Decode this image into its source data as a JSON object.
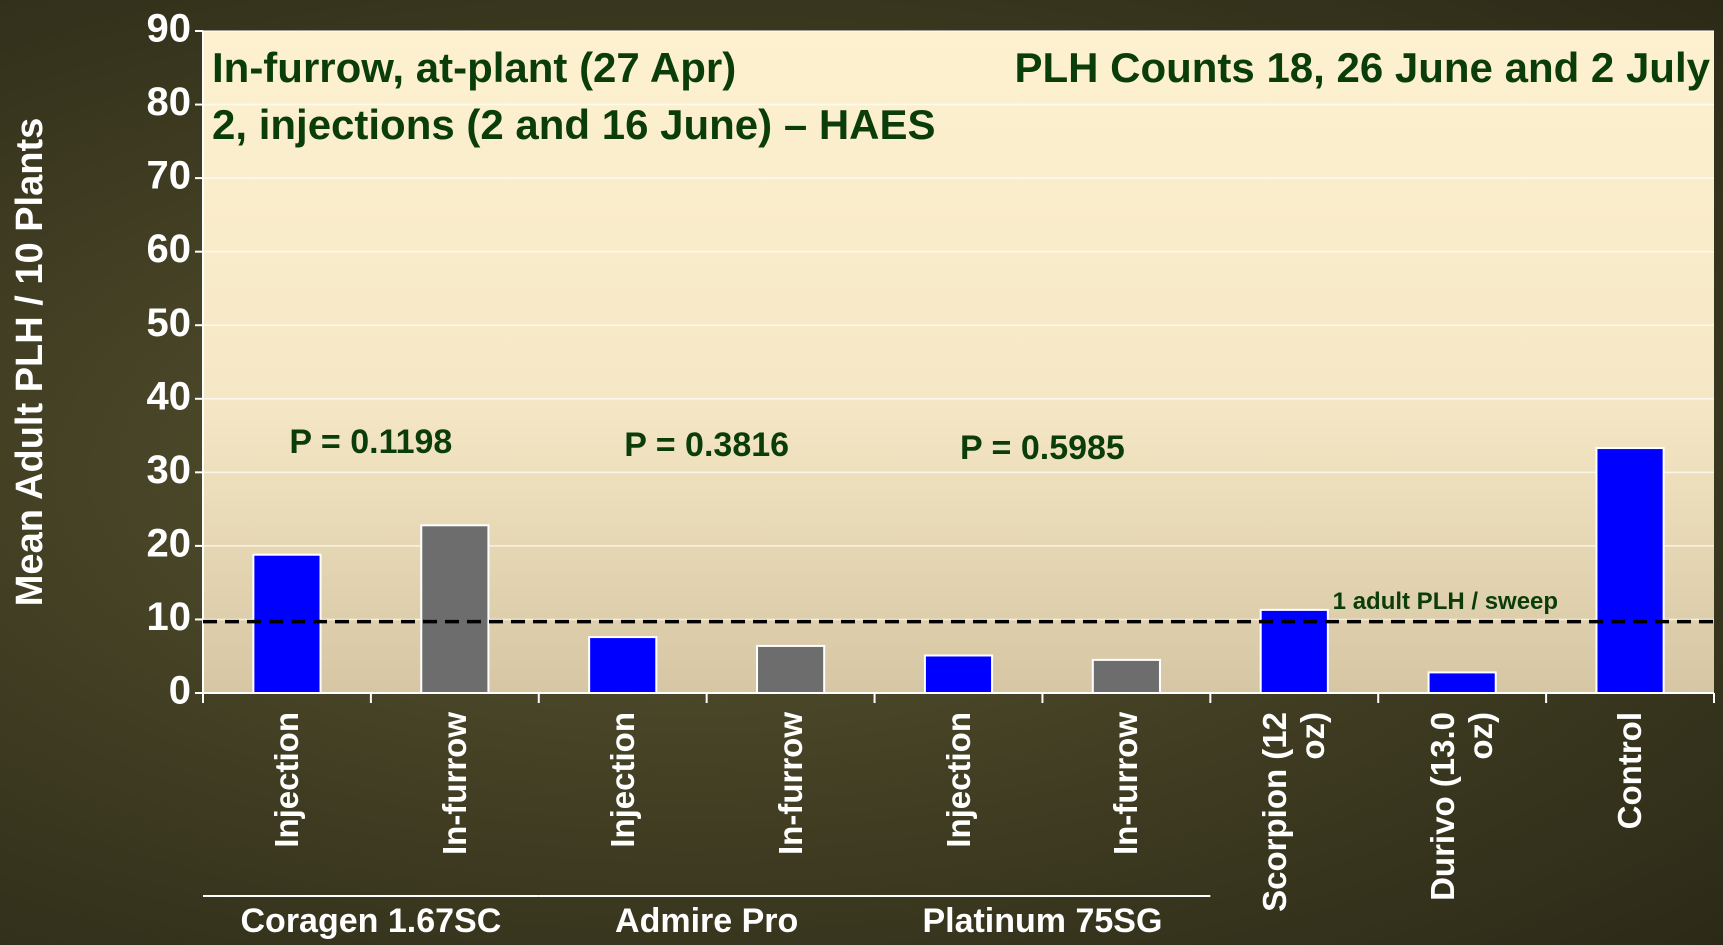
{
  "chart_data": {
    "type": "bar",
    "title_lines": [
      "In-furrow, at-plant (27 Apr)",
      "PLH Counts 18, 26 June and 2 July",
      "2, injections (2 and 16 June) – HAES"
    ],
    "y_label": "Mean Adult PLH / 10 Plants",
    "categories": [
      "Injection",
      "In-furrow",
      "Injection",
      "In-furrow",
      "Injection",
      "In-furrow",
      "Scorpion (12 oz)",
      "Durivo (13.0 oz)",
      "Control"
    ],
    "values": [
      18.8,
      22.8,
      7.6,
      6.4,
      5.1,
      4.5,
      11.3,
      2.8,
      33.3
    ],
    "colors": [
      "#0000ff",
      "#6d6d6d",
      "#0000ff",
      "#6d6d6d",
      "#0000ff",
      "#6d6d6d",
      "#0000ff",
      "#0000ff",
      "#0000ff"
    ],
    "groups": [
      {
        "label": "Coragen 1.67SC",
        "p_label": "P = 0.1198",
        "start": 0,
        "end": 1
      },
      {
        "label": "Admire Pro",
        "p_label": "P = 0.3816",
        "start": 2,
        "end": 3
      },
      {
        "label": "Platinum 75SG",
        "p_label": "P = 0.5985",
        "start": 4,
        "end": 5
      }
    ],
    "threshold": {
      "value": 9.7,
      "label": "1 adult PLH / sweep"
    },
    "ylim": [
      0,
      90
    ],
    "yticks": [
      0,
      10,
      20,
      30,
      40,
      50,
      60,
      70,
      80,
      90
    ],
    "grid": true
  }
}
